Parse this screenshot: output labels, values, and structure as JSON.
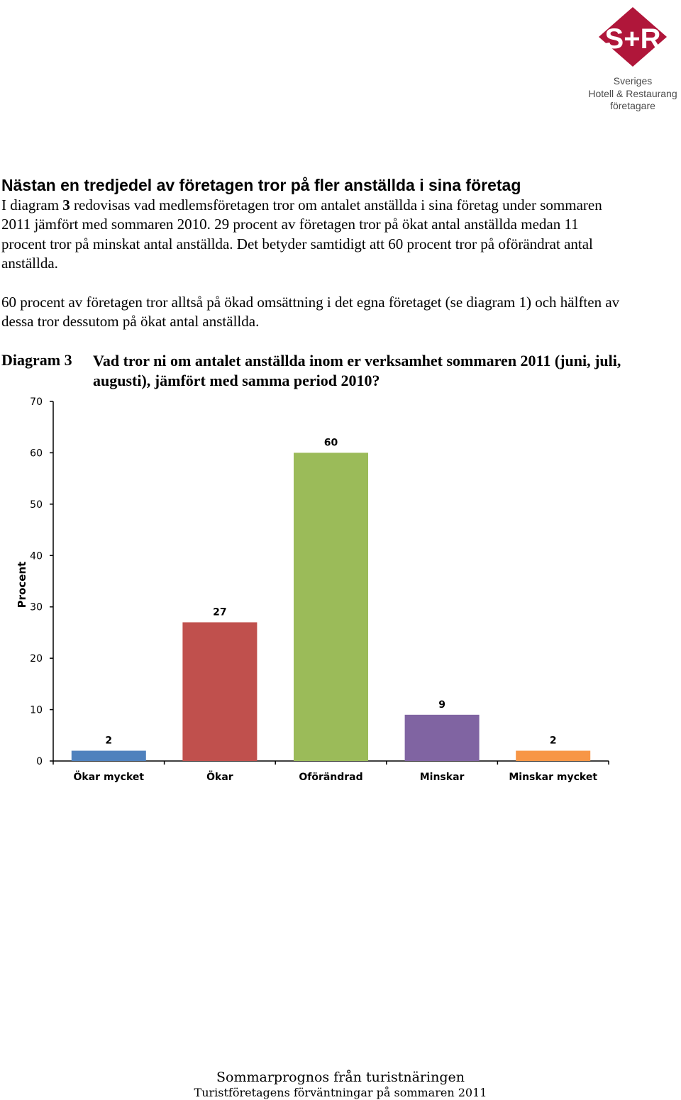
{
  "logo": {
    "mark": "S+R",
    "line1": "Sveriges",
    "line2": "Hotell & Restaurang",
    "line3": "företagare",
    "color": "#b0163a"
  },
  "heading": "Nästan en tredjedel av företagen tror på fler anställda i sina företag",
  "paragraph1": {
    "pre": "I diagram ",
    "bold": "3",
    "post": " redovisas vad medlemsföretagen tror om antalet anställda i sina företag under sommaren 2011 jämfört med sommaren 2010. 29 procent av företagen tror på ökat antal anställda medan 11 procent tror på minskat antal anställda. Det betyder samtidigt att 60 procent tror på oförändrat antal anställda."
  },
  "paragraph2": "60 procent av företagen tror alltså på ökad omsättning i det egna företaget (se diagram 1) och hälften av dessa tror dessutom på ökat antal anställda.",
  "diagram": {
    "label": "Diagram 3",
    "title": "Vad tror ni om antalet anställda inom er verksamhet sommaren 2011 (juni, juli, augusti), jämfört med samma period 2010?"
  },
  "chart_data": {
    "type": "bar",
    "categories": [
      "Ökar mycket",
      "Ökar",
      "Oförändrad",
      "Minskar",
      "Minskar mycket"
    ],
    "values": [
      2,
      27,
      60,
      9,
      2
    ],
    "colors": [
      "#4f81bd",
      "#c0504d",
      "#9bbb59",
      "#8064a2",
      "#f79646"
    ],
    "data_labels": [
      "2",
      "27",
      "60",
      "9",
      "2"
    ],
    "ylabel": "Procent",
    "xlabel": "",
    "ylim": [
      0,
      70
    ],
    "yticks": [
      0,
      10,
      20,
      30,
      40,
      50,
      60,
      70
    ],
    "grid": false,
    "legend": "none"
  },
  "footer": {
    "line1": "Sommarprognos från turistnäringen",
    "line2": "Turistföretagens förväntningar på sommaren 2011"
  }
}
